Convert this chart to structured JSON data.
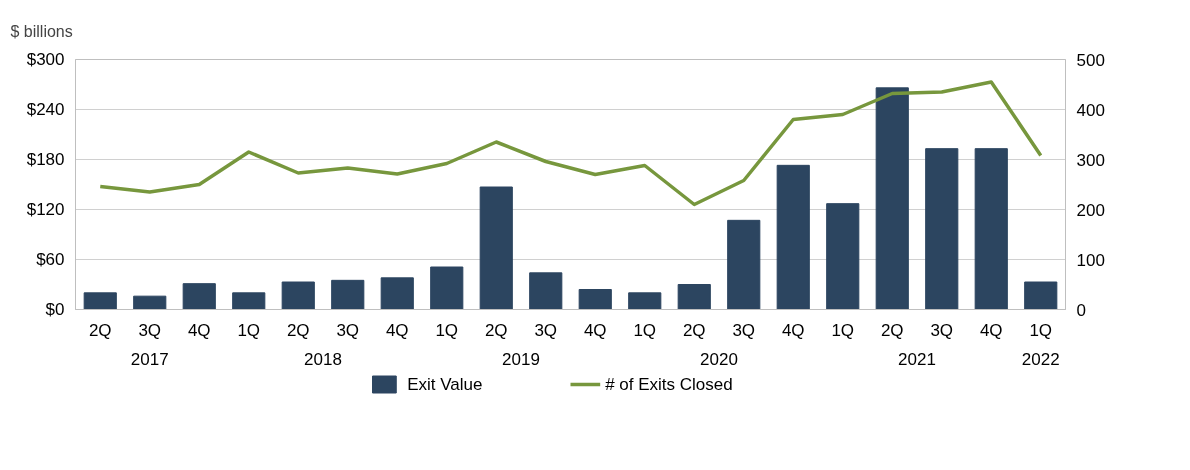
{
  "chart_data": {
    "type": "bar",
    "ylabel": "$ billions",
    "categories": [
      "2Q",
      "3Q",
      "4Q",
      "1Q",
      "2Q",
      "3Q",
      "4Q",
      "1Q",
      "2Q",
      "3Q",
      "4Q",
      "1Q",
      "2Q",
      "3Q",
      "4Q",
      "1Q",
      "2Q",
      "3Q",
      "4Q",
      "1Q"
    ],
    "series": [
      {
        "name": "Exit Value",
        "color": "#2c4560",
        "values": [
          20,
          16,
          31,
          20,
          33,
          35,
          38,
          51,
          147,
          44,
          24,
          20,
          30,
          107,
          173,
          127,
          266,
          193,
          193,
          33
        ]
      },
      {
        "name": "# of Exits Closed",
        "type": "line",
        "axis": "y2",
        "color": "#77973d",
        "values": [
          246,
          235,
          250,
          315,
          273,
          283,
          271,
          292,
          335,
          296,
          270,
          288,
          210,
          258,
          380,
          390,
          432,
          435,
          455,
          308
        ]
      }
    ],
    "ylim": [
      0,
      300
    ],
    "yticks": [
      {
        "value": 0,
        "label": "$0"
      },
      {
        "value": 60,
        "label": "$60"
      },
      {
        "value": 120,
        "label": "$120"
      },
      {
        "value": 180,
        "label": "$180"
      },
      {
        "value": 240,
        "label": "$240"
      },
      {
        "value": 300,
        "label": "$300"
      }
    ],
    "y2lim": [
      0,
      500
    ],
    "y2ticks": [
      0,
      100,
      200,
      300,
      400,
      500
    ],
    "annotations": [
      "2017",
      "2018",
      "2019",
      "2020",
      "2021",
      "2022"
    ],
    "grid": "y",
    "legend": "bottom",
    "line_style": "solid"
  }
}
